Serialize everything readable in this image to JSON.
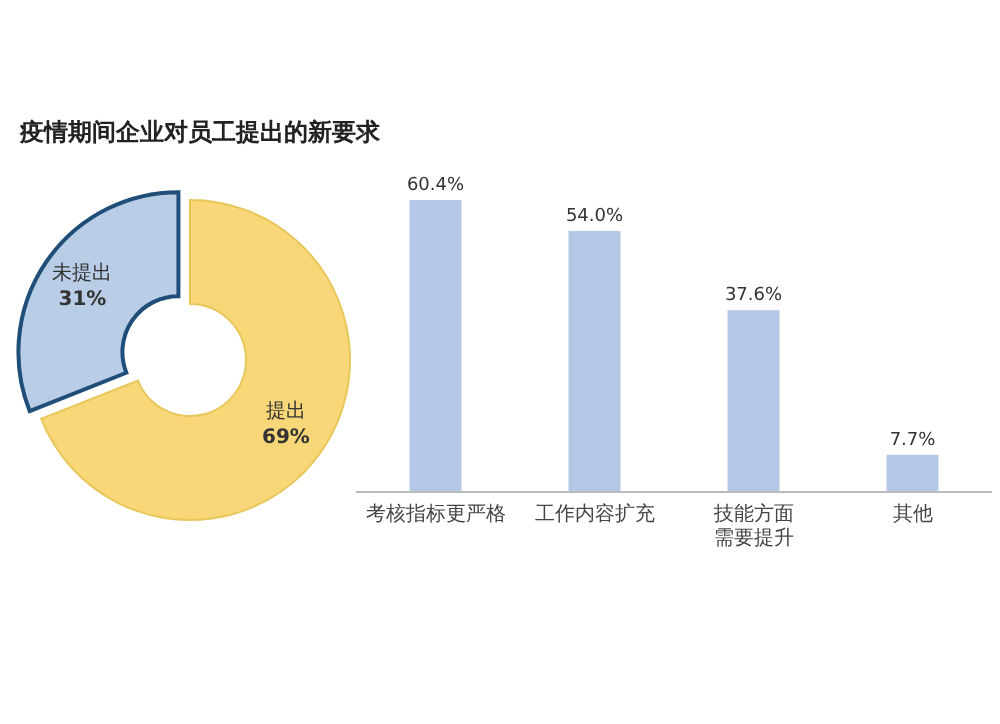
{
  "chart_data": [
    {
      "type": "donut",
      "title": "疫情期间企业对员工提出的新要求",
      "categories": [
        "未提出",
        "提出"
      ],
      "values": [
        31,
        69
      ],
      "colors": [
        "#b9cde6",
        "#f7d778"
      ],
      "value_labels": [
        "31%",
        "69%"
      ]
    },
    {
      "type": "bar",
      "categories": [
        "考核指标更严格",
        "工作内容扩充",
        "技能方面需要提升",
        "其他"
      ],
      "values": [
        60.4,
        54.0,
        37.6,
        7.7
      ],
      "color": "#b4c7e7",
      "value_labels": [
        "60.4%",
        "54.0%",
        "37.6%",
        "7.7%"
      ]
    }
  ]
}
